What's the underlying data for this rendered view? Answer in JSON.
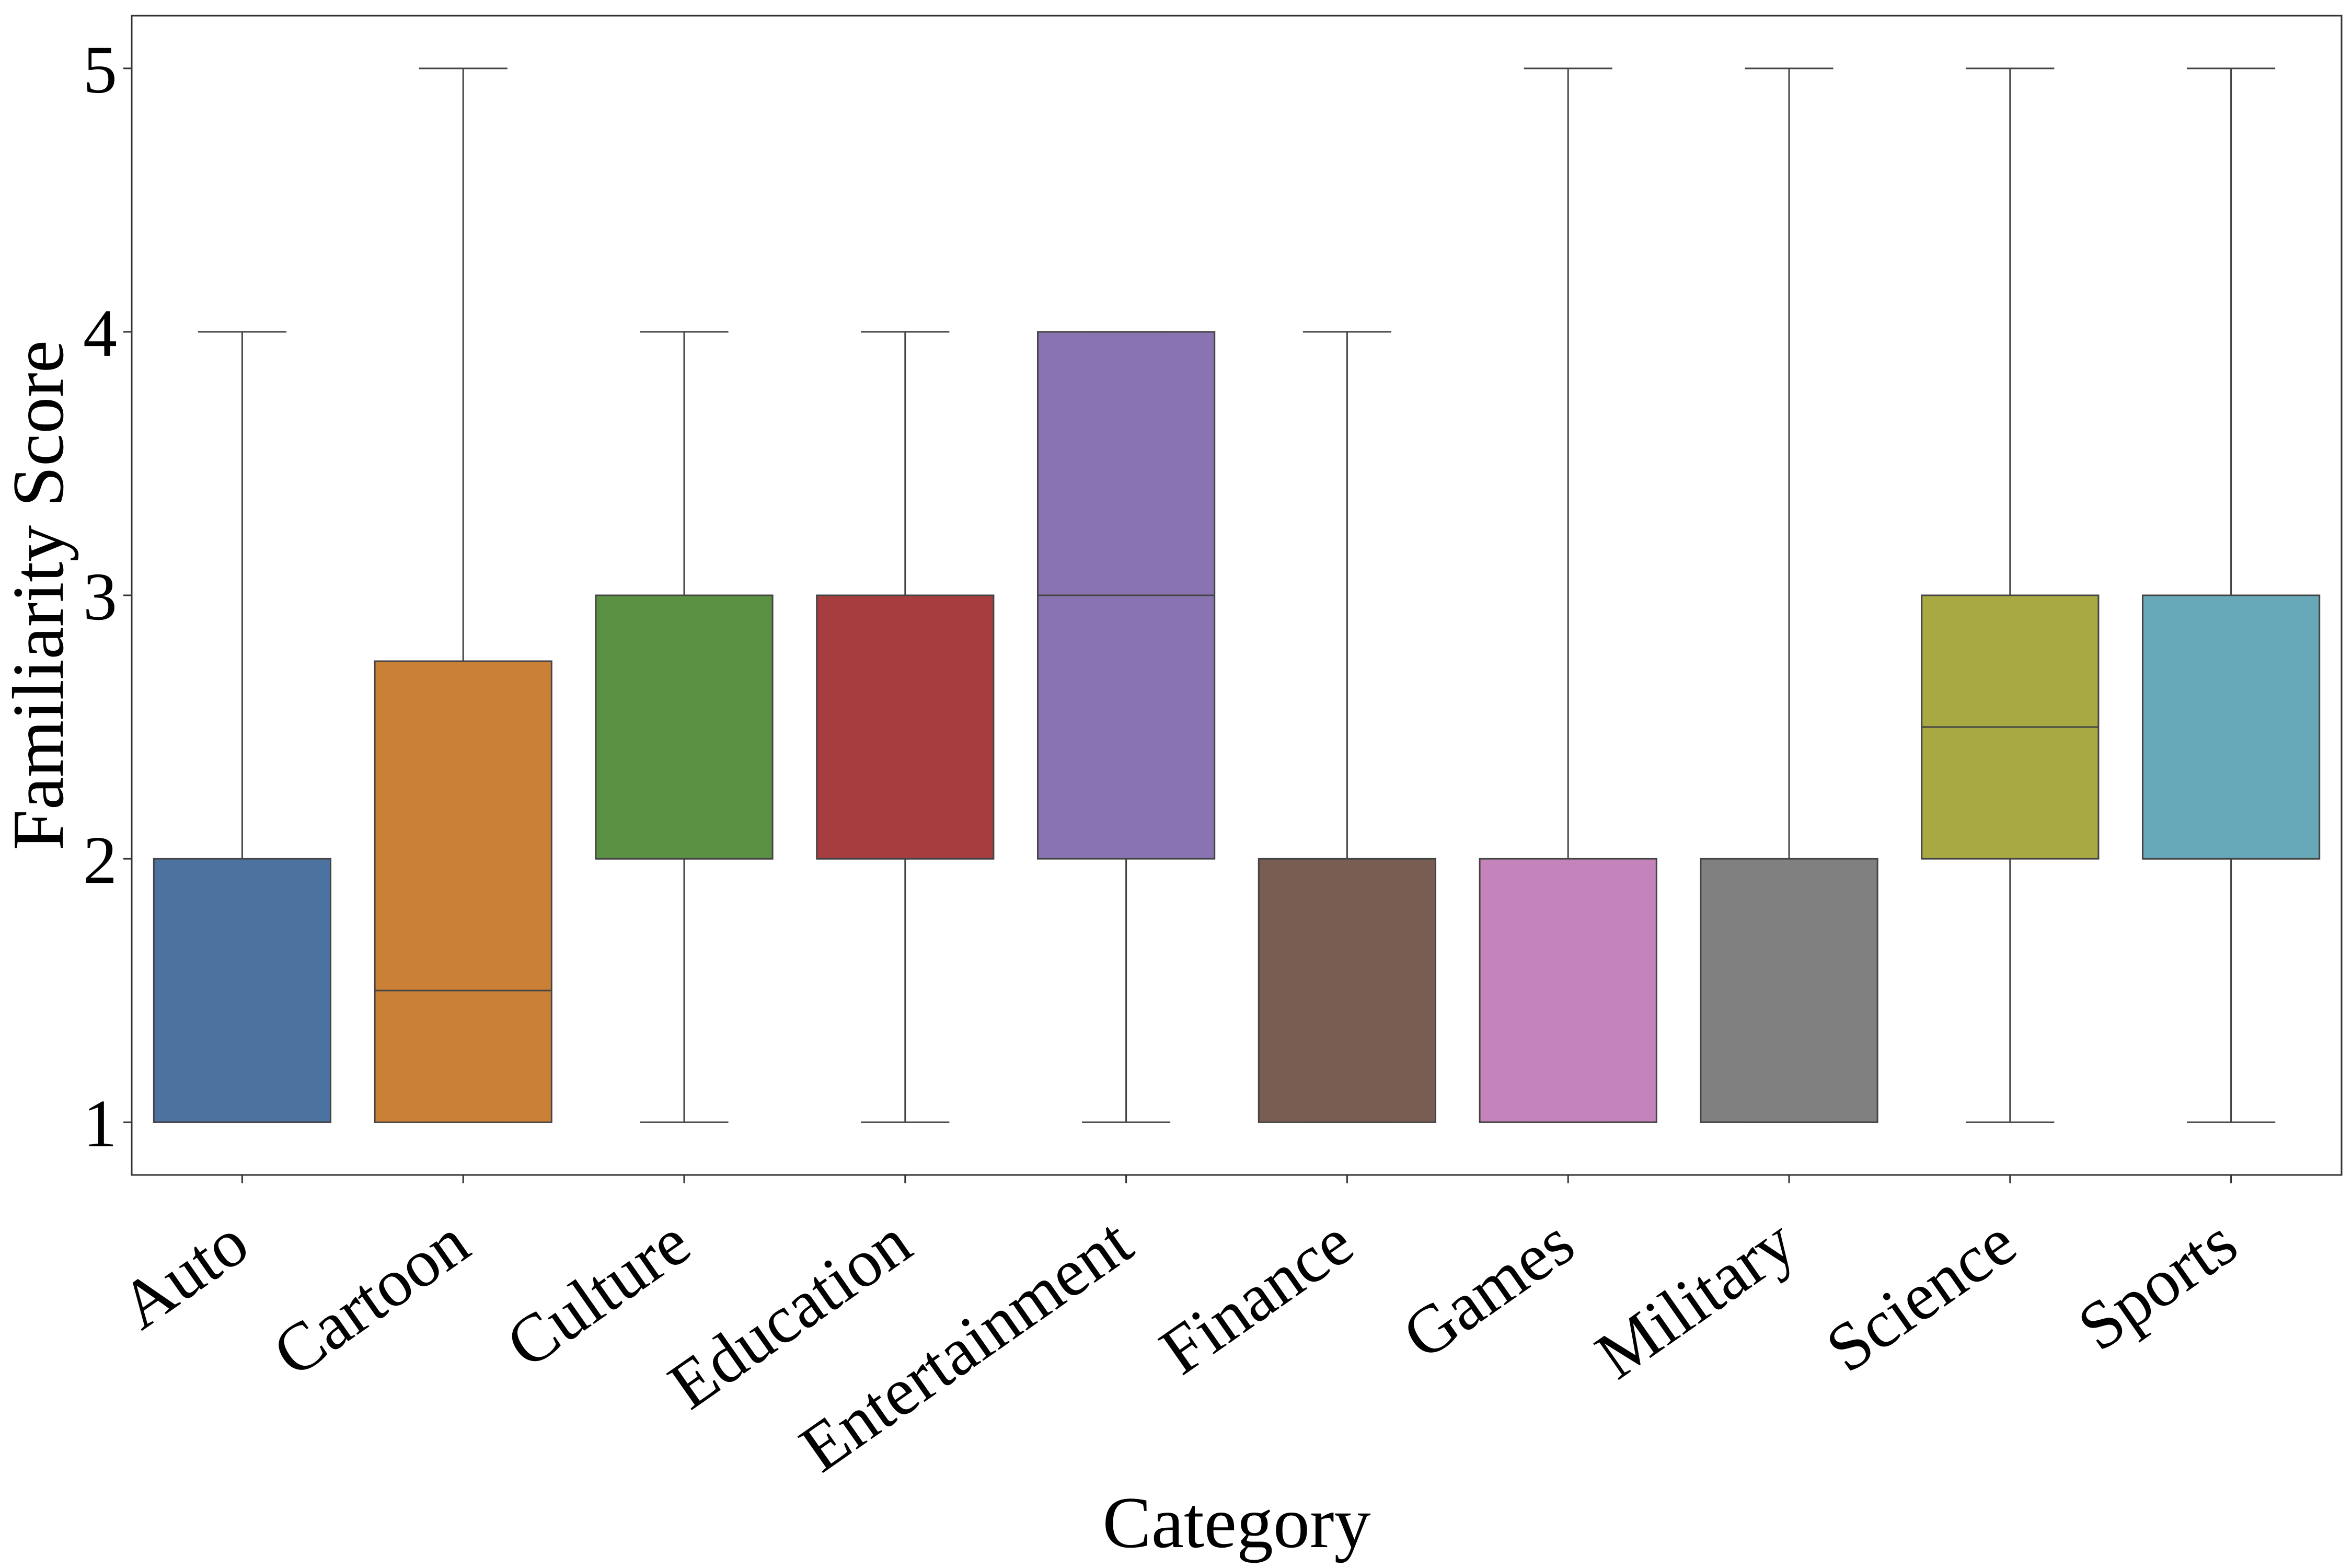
{
  "chart_data": {
    "type": "box",
    "xlabel": "Category",
    "ylabel": "Familiarity Score",
    "ylim": [
      0.8,
      5.2
    ],
    "yticks": [
      1,
      2,
      3,
      4,
      5
    ],
    "grid": false,
    "categories": [
      {
        "name": "Auto",
        "min": 1,
        "q1": 1,
        "median": 1,
        "q3": 2,
        "max": 4,
        "color": "#4c72a0"
      },
      {
        "name": "Cartoon",
        "min": 1,
        "q1": 1,
        "median": 1.5,
        "q3": 2.75,
        "max": 5,
        "color": "#cb8037"
      },
      {
        "name": "Culture",
        "min": 1,
        "q1": 2,
        "median": 2,
        "q3": 3,
        "max": 4,
        "color": "#5b9143"
      },
      {
        "name": "Education",
        "min": 1,
        "q1": 2,
        "median": 2,
        "q3": 3,
        "max": 4,
        "color": "#a63e3f"
      },
      {
        "name": "Entertainment",
        "min": 1,
        "q1": 2,
        "median": 3,
        "q3": 4,
        "max": 4,
        "color": "#8973b1"
      },
      {
        "name": "Finance",
        "min": 1,
        "q1": 1,
        "median": 2,
        "q3": 2,
        "max": 4,
        "color": "#795d53"
      },
      {
        "name": "Games",
        "min": 1,
        "q1": 1,
        "median": 1,
        "q3": 2,
        "max": 5,
        "color": "#c583bb"
      },
      {
        "name": "Military",
        "min": 1,
        "q1": 1,
        "median": 1,
        "q3": 2,
        "max": 5,
        "color": "#808080"
      },
      {
        "name": "Science",
        "min": 1,
        "q1": 2,
        "median": 2.5,
        "q3": 3,
        "max": 5,
        "color": "#a8a943"
      },
      {
        "name": "Sports",
        "min": 1,
        "q1": 2,
        "median": 2,
        "q3": 3,
        "max": 5,
        "color": "#67a9b8"
      }
    ]
  }
}
